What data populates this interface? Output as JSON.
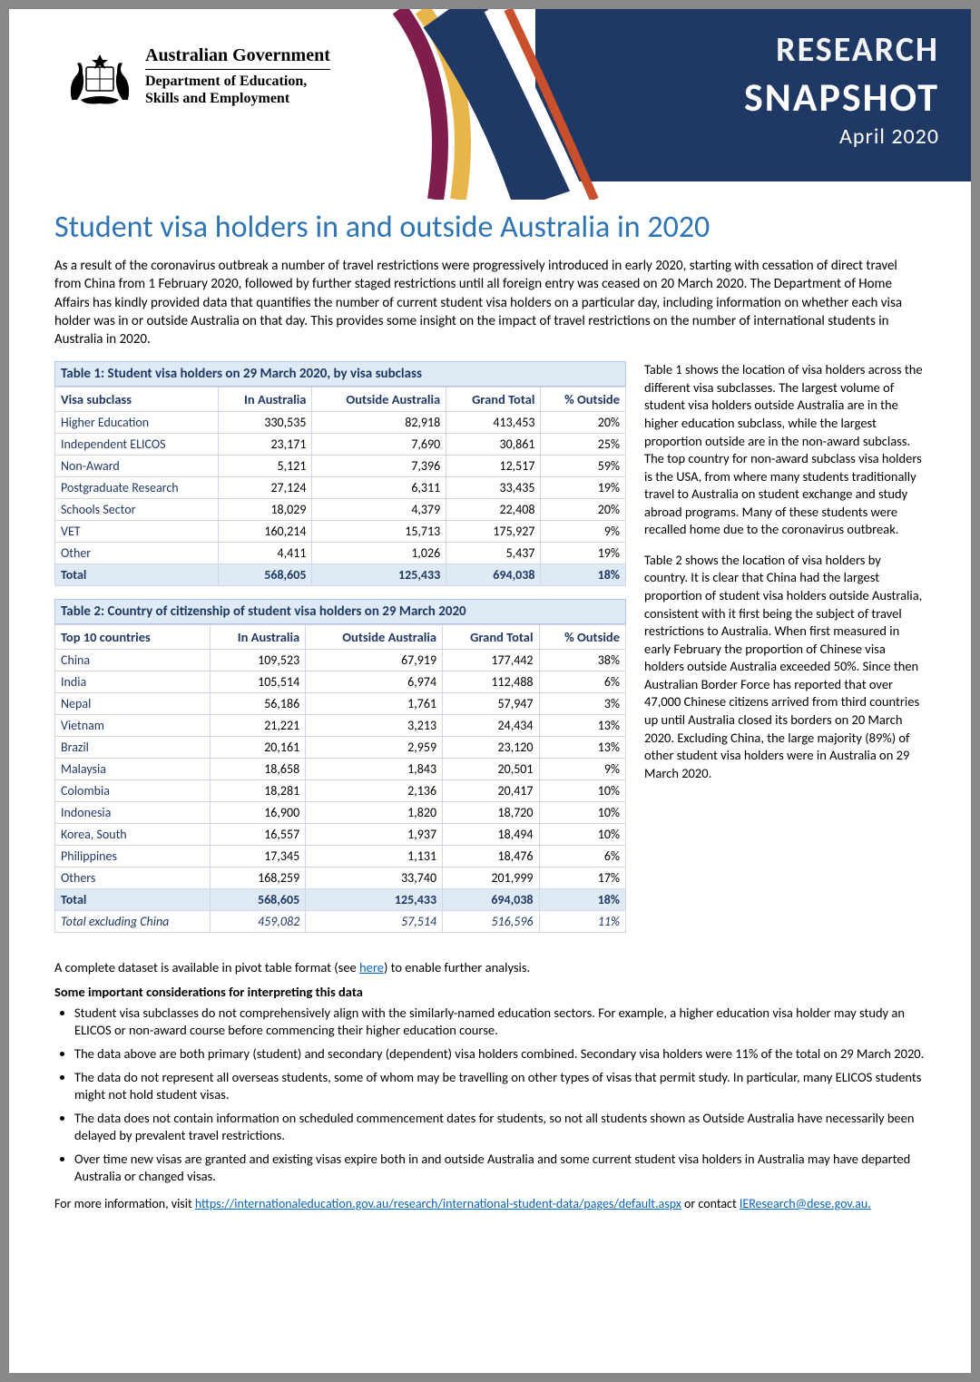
{
  "header": {
    "gov_line1": "Australian Government",
    "gov_line2": "Department of Education,",
    "gov_line3": "Skills and Employment",
    "band_l1": "RESEARCH",
    "band_l2": "SNAPSHOT",
    "band_date": "April 2020",
    "ribbon_colors": [
      "#7f1d4e",
      "#e8b54a",
      "#1f3864",
      "#c94f2d",
      "#ffffff"
    ]
  },
  "title": "Student visa holders in and outside Australia in 2020",
  "intro": "As a result of the coronavirus outbreak a number of travel restrictions were progressively introduced in early 2020, starting with cessation of direct travel from China from 1 February 2020, followed by further staged restrictions until all foreign entry was ceased on 20 March 2020. The Department of Home Affairs has kindly provided data that quantifies the number of current student visa holders on a particular day, including information on whether each visa holder was in or outside Australia on that day. This provides some insight on the impact of travel restrictions on the number of international students in Australia in 2020.",
  "table1": {
    "caption": "Table 1: Student visa holders on 29 March 2020, by visa subclass",
    "headers": [
      "Visa subclass",
      "In Australia",
      "Outside Australia",
      "Grand Total",
      "% Outside"
    ],
    "rows": [
      [
        "Higher Education",
        "330,535",
        "82,918",
        "413,453",
        "20%"
      ],
      [
        "Independent ELICOS",
        "23,171",
        "7,690",
        "30,861",
        "25%"
      ],
      [
        "Non-Award",
        "5,121",
        "7,396",
        "12,517",
        "59%"
      ],
      [
        "Postgraduate Research",
        "27,124",
        "6,311",
        "33,435",
        "19%"
      ],
      [
        "Schools Sector",
        "18,029",
        "4,379",
        "22,408",
        "20%"
      ],
      [
        "VET",
        "160,214",
        "15,713",
        "175,927",
        "9%"
      ],
      [
        "Other",
        "4,411",
        "1,026",
        "5,437",
        "19%"
      ]
    ],
    "total": [
      "Total",
      "568,605",
      "125,433",
      "694,038",
      "18%"
    ]
  },
  "table2": {
    "caption": "Table 2: Country of citizenship of student visa holders on 29 March 2020",
    "headers": [
      "Top 10 countries",
      "In Australia",
      "Outside Australia",
      "Grand Total",
      "% Outside"
    ],
    "rows": [
      [
        "China",
        "109,523",
        "67,919",
        "177,442",
        "38%"
      ],
      [
        "India",
        "105,514",
        "6,974",
        "112,488",
        "6%"
      ],
      [
        "Nepal",
        "56,186",
        "1,761",
        "57,947",
        "3%"
      ],
      [
        "Vietnam",
        "21,221",
        "3,213",
        "24,434",
        "13%"
      ],
      [
        "Brazil",
        "20,161",
        "2,959",
        "23,120",
        "13%"
      ],
      [
        "Malaysia",
        "18,658",
        "1,843",
        "20,501",
        "9%"
      ],
      [
        "Colombia",
        "18,281",
        "2,136",
        "20,417",
        "10%"
      ],
      [
        "Indonesia",
        "16,900",
        "1,820",
        "18,720",
        "10%"
      ],
      [
        "Korea, South",
        "16,557",
        "1,937",
        "18,494",
        "10%"
      ],
      [
        "Philippines",
        "17,345",
        "1,131",
        "18,476",
        "6%"
      ],
      [
        "Others",
        "168,259",
        "33,740",
        "201,999",
        "17%"
      ]
    ],
    "total": [
      "Total",
      "568,605",
      "125,433",
      "694,038",
      "18%"
    ],
    "subtotal": [
      "Total excluding China",
      "459,082",
      "57,514",
      "516,596",
      "11%"
    ]
  },
  "side": {
    "p1": "Table 1 shows the location of visa holders across the different visa subclasses. The largest volume of student visa holders outside Australia are in the higher education subclass, while the largest proportion outside are in the non-award subclass. The top country for non-award subclass visa holders is the USA, from where many students traditionally travel to Australia on student exchange and study abroad programs. Many of these students were recalled home due to the coronavirus outbreak.",
    "p2": "Table 2 shows the location of visa holders by country. It is clear that China had the largest proportion of student visa holders outside Australia, consistent with it first being the subject of travel restrictions to Australia. When first measured in early February the proportion of Chinese visa holders outside Australia exceeded 50%. Since then Australian Border Force has reported that over 47,000 Chinese citizens arrived from third countries up until Australia closed its borders on 20 March 2020. Excluding China, the large majority (89%) of other student visa holders were in Australia on 29 March 2020."
  },
  "after": {
    "dataset_pre": "A complete dataset is available in pivot table format (see ",
    "dataset_link": "here",
    "dataset_post": ") to enable further analysis.",
    "considerations_heading": "Some important considerations for interpreting this data",
    "bullets": [
      "Student visa subclasses do not comprehensively align with the similarly-named education sectors. For example, a higher education visa holder may study an ELICOS or non-award course before commencing their higher education course.",
      "The data above are both primary (student) and secondary (dependent) visa holders combined. Secondary visa holders were 11% of the total on 29 March 2020.",
      "The data do not represent all overseas students, some of whom may be travelling on other types of visas that permit study. In particular, many ELICOS students might not hold student visas.",
      "The data does not contain information on scheduled commencement dates for students, so not all students shown as Outside Australia have necessarily been delayed by prevalent travel restrictions.",
      "Over time new visas are granted and existing visas expire both in and outside Australia and some current student visa holders in Australia may have departed Australia or changed visas."
    ],
    "footer_pre": "For more information, visit ",
    "footer_link": "https://internationaleducation.gov.au/research/international-student-data/pages/default.aspx",
    "footer_mid": " or contact ",
    "footer_email": "IEResearch@dese.gov.au."
  },
  "style": {
    "accent_blue": "#2e74b5",
    "dark_blue": "#1f3864",
    "table_header_bg": "#deeaf6",
    "border_color": "#d0d7e5",
    "link_color": "#0563c1"
  }
}
